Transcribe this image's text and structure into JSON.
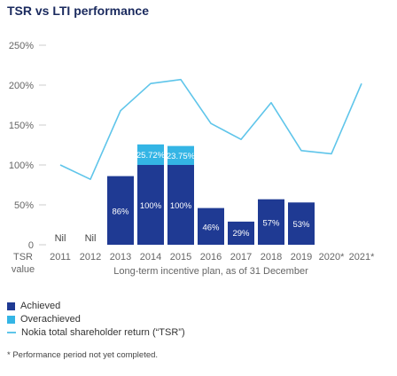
{
  "chart_data": {
    "type": "bar",
    "title": "TSR vs LTI performance",
    "xlabel": "Long-term incentive plan, as of 31 December",
    "ylabel_lines": [
      "TSR",
      "value"
    ],
    "y_ticks": [
      "250%",
      "200%",
      "150%",
      "100%",
      "50%",
      "0"
    ],
    "ylim": [
      0,
      250
    ],
    "categories": [
      "2011",
      "2012",
      "2013",
      "2014",
      "2015",
      "2016",
      "2017",
      "2018",
      "2019",
      "2020*",
      "2021*"
    ],
    "series": [
      {
        "name": "Achieved",
        "color": "#1f3a93",
        "values": [
          0,
          0,
          86,
          100,
          100,
          46,
          29,
          57,
          53,
          null,
          null
        ],
        "labels": [
          "Nil",
          "Nil",
          "86%",
          "100%",
          "100%",
          "46%",
          "29%",
          "57%",
          "53%",
          "",
          ""
        ]
      },
      {
        "name": "Overachieved",
        "color": "#34b5e5",
        "values": [
          0,
          0,
          0,
          25.72,
          23.75,
          0,
          0,
          0,
          0,
          null,
          null
        ],
        "labels": [
          "",
          "",
          "",
          "25.72%",
          "23.75%",
          "",
          "",
          "",
          "",
          "",
          ""
        ]
      },
      {
        "name": "Nokia total shareholder return (“TSR”)",
        "type": "line",
        "color": "#5fc5ea",
        "values": [
          100,
          82,
          168,
          202,
          207,
          152,
          132,
          178,
          118,
          114,
          202
        ]
      }
    ],
    "legend_placement": "bottom-left"
  },
  "legend": {
    "achieved": "Achieved",
    "overachieved": "Overachieved",
    "tsr": "Nokia total shareholder return (“TSR”)"
  },
  "footnote": "* Performance period not yet completed."
}
